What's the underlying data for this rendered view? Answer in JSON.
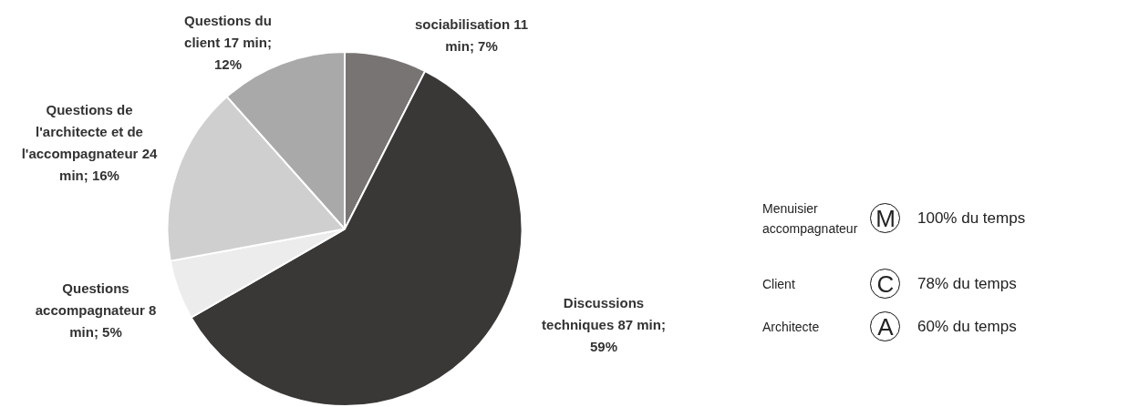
{
  "chart_data": {
    "type": "pie",
    "categories": [
      "sociabilisation",
      "Discussions techniques",
      "Questions accompagnateur",
      "Questions de l'architecte et de l'accompagnateur",
      "Questions du client"
    ],
    "values": [
      11,
      87,
      8,
      24,
      17
    ],
    "value_labels": [
      "11 min; 7%",
      "87 min; 59%",
      "8 min; 5%",
      "24 min; 16%",
      "17 min; 12%"
    ],
    "colors": [
      "#777473",
      "#3a3837",
      "#ececec",
      "#d0cfcf",
      "#aaa9a9"
    ],
    "legend": false,
    "annotations": [
      "Menuisier accompagnateur",
      "M",
      "100% du temps",
      "Client",
      "C",
      "78% du temps",
      "Architecte",
      "A",
      "60% du temps"
    ]
  }
}
